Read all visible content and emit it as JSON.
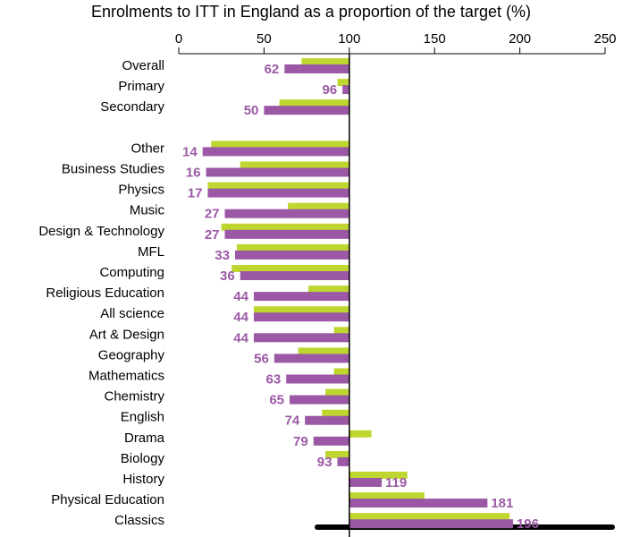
{
  "chart_data": {
    "type": "bar",
    "orientation": "horizontal",
    "title": "Enrolments to ITT in England as a proportion of the target (%)",
    "categories": [
      "Overall",
      "Primary",
      "Secondary",
      null,
      "Other",
      "Business Studies",
      "Physics",
      "Music",
      "Design & Technology",
      "MFL",
      "Computing",
      "Religious Education",
      "All science",
      "Art & Design",
      "Geography",
      "Mathematics",
      "Chemistry",
      "English",
      "Drama",
      "Biology",
      "History",
      "Physical Education",
      "Classics"
    ],
    "series": [
      {
        "color": "#bfd630",
        "values": [
          72,
          93,
          59,
          null,
          19,
          36,
          17,
          64,
          25,
          34,
          31,
          76,
          44,
          91,
          70,
          91,
          86,
          84,
          113,
          86,
          134,
          144,
          194
        ]
      },
      {
        "color": "#9b59a5",
        "values": [
          62,
          96,
          50,
          null,
          14,
          16,
          17,
          27,
          27,
          33,
          36,
          44,
          44,
          44,
          56,
          63,
          65,
          74,
          79,
          93,
          119,
          181,
          196
        ]
      }
    ],
    "xlim": [
      0,
      250
    ],
    "xticks": [
      0,
      50,
      100,
      150,
      200,
      250
    ],
    "reference_line": 100,
    "label_series": 1
  }
}
